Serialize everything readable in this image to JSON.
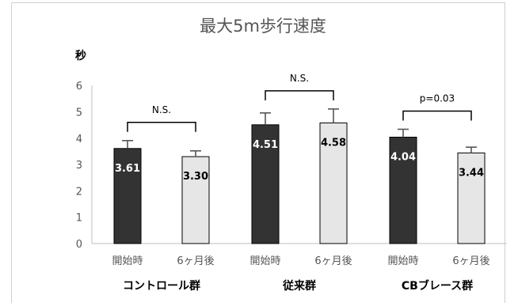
{
  "chart_data": {
    "type": "bar",
    "title": "最大5m歩行速度",
    "ylabel": "秒",
    "ylim": [
      0,
      6
    ],
    "yticks": [
      0,
      1,
      2,
      3,
      4,
      5,
      6
    ],
    "grid": false,
    "legend": "none",
    "groups": [
      {
        "label": "コントロール群",
        "significance": "N.S.",
        "bars": [
          {
            "category": "開始時",
            "value": 3.61,
            "value_label": "3.61",
            "error": 0.3
          },
          {
            "category": "6ヶ月後",
            "value": 3.3,
            "value_label": "3.30",
            "error": 0.22
          }
        ]
      },
      {
        "label": "従来群",
        "significance": "N.S.",
        "bars": [
          {
            "category": "開始時",
            "value": 4.51,
            "value_label": "4.51",
            "error": 0.45
          },
          {
            "category": "6ヶ月後",
            "value": 4.58,
            "value_label": "4.58",
            "error": 0.53
          }
        ]
      },
      {
        "label": "CBブレース群",
        "significance": "p=0.03",
        "bars": [
          {
            "category": "開始時",
            "value": 4.04,
            "value_label": "4.04",
            "error": 0.3
          },
          {
            "category": "6ヶ月後",
            "value": 3.44,
            "value_label": "3.44",
            "error": 0.22
          }
        ]
      }
    ],
    "colors": {
      "baseline": "#333333",
      "followup": "#e6e6e6",
      "outline": "#000000"
    }
  }
}
